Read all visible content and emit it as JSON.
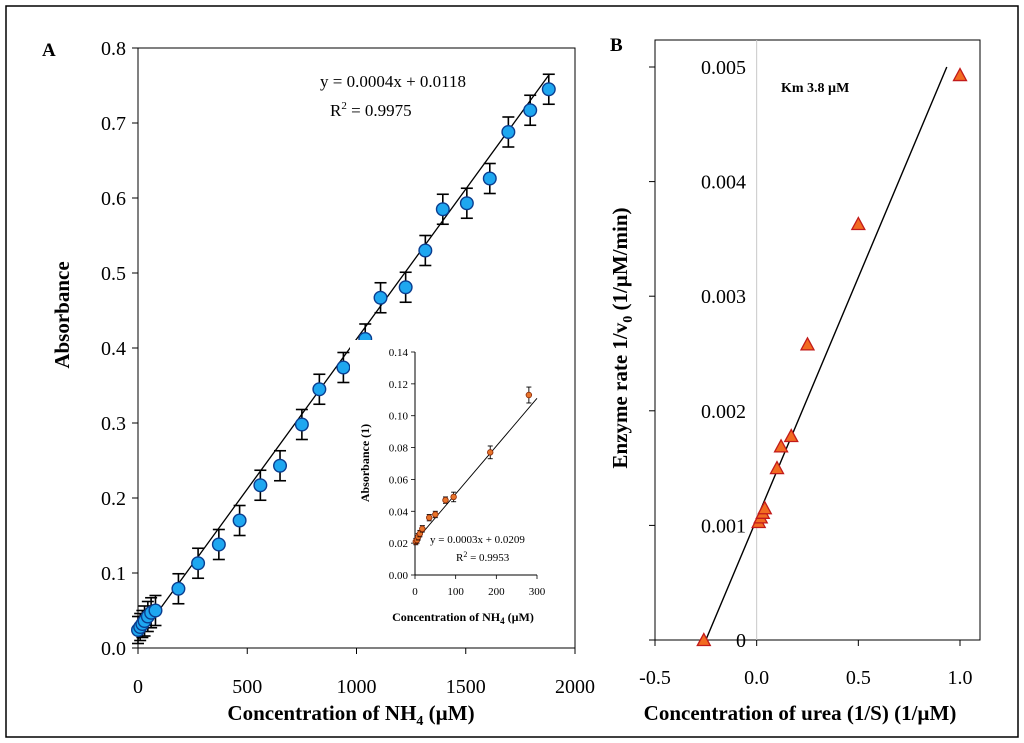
{
  "chart_data": [
    {
      "panel": "A",
      "type": "scatter",
      "xlabel": "Concentration of NH",
      "xlabel_sub": "4",
      "xlabel_unit": " (µM)",
      "ylabel": "Absorbance",
      "xlim": [
        0,
        2000
      ],
      "ylim": [
        0,
        0.8
      ],
      "xticks": [
        0,
        500,
        1000,
        1500,
        2000
      ],
      "yticks": [
        0.0,
        0.1,
        0.2,
        0.3,
        0.4,
        0.5,
        0.6,
        0.7,
        0.8
      ],
      "ytick_labels": [
        "0.0",
        "0.1",
        "0.2",
        "0.3",
        "0.4",
        "0.5",
        "0.6",
        "0.7",
        "0.8"
      ],
      "x": [
        0,
        10,
        20,
        30,
        45,
        60,
        80,
        185,
        275,
        370,
        465,
        560,
        650,
        750,
        830,
        940,
        1040,
        1110,
        1225,
        1315,
        1395,
        1505,
        1610,
        1695,
        1795,
        1880
      ],
      "y": [
        0.024,
        0.028,
        0.032,
        0.036,
        0.042,
        0.047,
        0.05,
        0.079,
        0.113,
        0.138,
        0.17,
        0.217,
        0.243,
        0.298,
        0.345,
        0.374,
        0.412,
        0.467,
        0.481,
        0.53,
        0.585,
        0.593,
        0.626,
        0.688,
        0.717,
        0.745
      ],
      "yerr": [
        0.018,
        0.018,
        0.018,
        0.02,
        0.02,
        0.02,
        0.02,
        0.02,
        0.02,
        0.02,
        0.02,
        0.02,
        0.02,
        0.02,
        0.02,
        0.02,
        0.02,
        0.02,
        0.02,
        0.02,
        0.02,
        0.02,
        0.02,
        0.02,
        0.02,
        0.02
      ],
      "fit": {
        "slope": 0.0004,
        "intercept": 0.0118,
        "x_range": [
          0,
          1880
        ]
      },
      "equation": "y = 0.0004x + 0.0118",
      "r2_label": "R",
      "r2_sup": "2",
      "r2_value": " = 0.9975",
      "marker_color": "#1ea7f0",
      "inset": {
        "type": "scatter",
        "xlabel": "Concentration of NH",
        "xlabel_sub": "4",
        "xlabel_unit": " (µM)",
        "ylabel": "Absorbance (1)",
        "xlim": [
          0,
          300
        ],
        "ylim": [
          0,
          0.14
        ],
        "xticks": [
          0,
          100,
          200,
          300
        ],
        "yticks": [
          0,
          0.02,
          0.04,
          0.06,
          0.08,
          0.1,
          0.12,
          0.14
        ],
        "ytick_labels": [
          "0.00",
          "0.02",
          "0.04",
          "0.06",
          "0.08",
          "0.10",
          "0.12",
          "0.14"
        ],
        "x": [
          2,
          5,
          8,
          12,
          18,
          35,
          50,
          75,
          95,
          185,
          280
        ],
        "y": [
          0.021,
          0.022,
          0.024,
          0.026,
          0.029,
          0.036,
          0.038,
          0.047,
          0.049,
          0.077,
          0.113
        ],
        "yerr": [
          0.002,
          0.002,
          0.002,
          0.002,
          0.002,
          0.002,
          0.002,
          0.002,
          0.003,
          0.004,
          0.005
        ],
        "fit": {
          "slope": 0.0003,
          "intercept": 0.0209,
          "x_range": [
            0,
            300
          ]
        },
        "equation": "y = 0.0003x + 0.0209",
        "r2_label": "R",
        "r2_sup": "2",
        "r2_value": " = 0.9953",
        "marker_color": "#e8742a"
      }
    },
    {
      "panel": "B",
      "type": "scatter",
      "xlabel": "Concentration of urea (1/S) (1/µM)",
      "ylabel": "Enzyme rate 1/v",
      "ylabel_sub": "0",
      "ylabel_unit": " (1/µM/min)",
      "xlim": [
        -0.5,
        1.0
      ],
      "ylim": [
        0,
        0.005
      ],
      "xticks": [
        -0.5,
        0.0,
        0.5,
        1.0
      ],
      "xtick_labels": [
        "-0.5",
        "0.0",
        "0.5",
        "1.0"
      ],
      "yticks": [
        0,
        0.001,
        0.002,
        0.003,
        0.004,
        0.005
      ],
      "ytick_labels": [
        "0",
        "0.001",
        "0.002",
        "0.003",
        "0.004",
        "0.005"
      ],
      "x": [
        -0.26,
        0.01,
        0.02,
        0.03,
        0.04,
        0.1,
        0.12,
        0.17,
        0.25,
        0.5,
        1.0
      ],
      "y": [
        0.0,
        0.00103,
        0.00107,
        0.00111,
        0.00115,
        0.0015,
        0.00169,
        0.00178,
        0.00258,
        0.00363,
        0.00493
      ],
      "fit": {
        "x0": -0.25,
        "y0": 0.0,
        "x1": 0.935,
        "y1": 0.005
      },
      "annotation": "Km 3.8 µM",
      "marker_color": "#f26b21",
      "marker_edge": "#c21a1a"
    }
  ]
}
